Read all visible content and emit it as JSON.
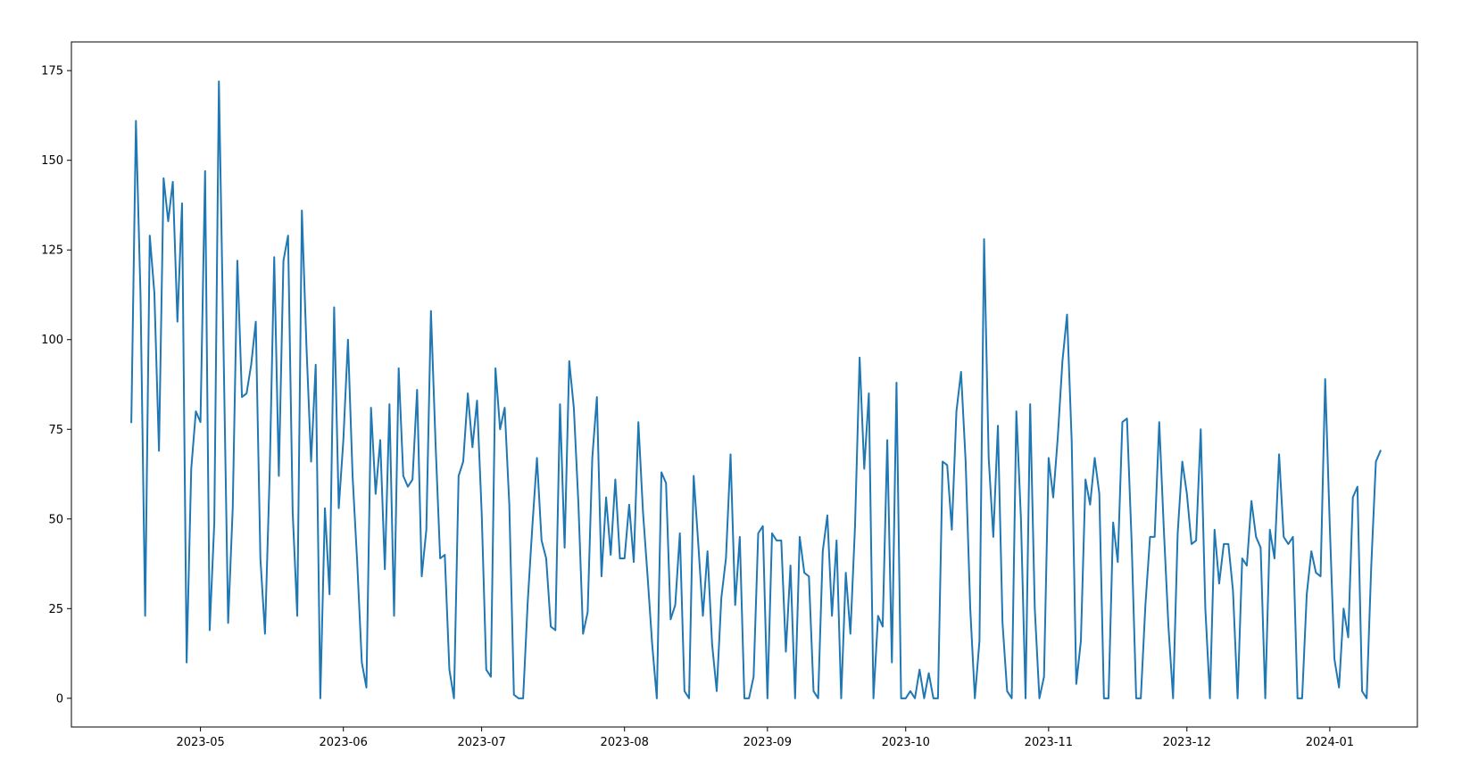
{
  "chart_data": {
    "type": "line",
    "title": "",
    "xlabel": "",
    "ylabel": "",
    "x_start_date": "2023-04-16",
    "ylim": [
      -8,
      183
    ],
    "xlim": [
      "2023-04-03",
      "2024-01-20"
    ],
    "grid": false,
    "x_ticks": [
      {
        "date": "2023-05-01",
        "label": "2023-05"
      },
      {
        "date": "2023-06-01",
        "label": "2023-06"
      },
      {
        "date": "2023-07-01",
        "label": "2023-07"
      },
      {
        "date": "2023-08-01",
        "label": "2023-08"
      },
      {
        "date": "2023-09-01",
        "label": "2023-09"
      },
      {
        "date": "2023-10-01",
        "label": "2023-10"
      },
      {
        "date": "2023-11-01",
        "label": "2023-11"
      },
      {
        "date": "2023-12-01",
        "label": "2023-12"
      },
      {
        "date": "2024-01-01",
        "label": "2024-01"
      }
    ],
    "y_ticks": [
      {
        "value": 0,
        "label": "0"
      },
      {
        "value": 25,
        "label": "25"
      },
      {
        "value": 50,
        "label": "50"
      },
      {
        "value": 75,
        "label": "75"
      },
      {
        "value": 100,
        "label": "100"
      },
      {
        "value": 125,
        "label": "125"
      },
      {
        "value": 150,
        "label": "150"
      },
      {
        "value": 175,
        "label": "175"
      }
    ],
    "series": [
      {
        "color": "#1f77b4",
        "values": [
          77,
          161,
          112,
          23,
          129,
          113,
          69,
          145,
          133,
          144,
          105,
          138,
          10,
          64,
          80,
          77,
          147,
          19,
          49,
          172,
          98,
          21,
          53,
          122,
          84,
          85,
          93,
          105,
          39,
          18,
          62,
          123,
          62,
          122,
          129,
          52,
          23,
          136,
          98,
          66,
          93,
          0,
          53,
          29,
          109,
          53,
          72,
          100,
          62,
          38,
          10,
          3,
          81,
          57,
          72,
          36,
          82,
          23,
          92,
          62,
          59,
          61,
          86,
          34,
          47,
          108,
          71,
          39,
          40,
          8,
          0,
          62,
          66,
          85,
          70,
          83,
          52,
          8,
          6,
          92,
          75,
          81,
          54,
          1,
          0,
          0,
          27,
          48,
          67,
          44,
          39,
          20,
          19,
          82,
          42,
          94,
          81,
          54,
          18,
          24,
          67,
          84,
          34,
          56,
          40,
          61,
          39,
          39,
          54,
          38,
          77,
          52,
          34,
          15,
          0,
          63,
          60,
          22,
          26,
          46,
          2,
          0,
          62,
          43,
          23,
          41,
          15,
          2,
          28,
          39,
          68,
          26,
          45,
          0,
          0,
          6,
          46,
          48,
          0,
          46,
          44,
          44,
          13,
          37,
          0,
          45,
          35,
          34,
          2,
          0,
          41,
          51,
          23,
          44,
          0,
          35,
          18,
          48,
          95,
          64,
          85,
          0,
          23,
          20,
          72,
          10,
          88,
          0,
          0,
          2,
          0,
          8,
          0,
          7,
          0,
          0,
          66,
          65,
          47,
          80,
          91,
          66,
          25,
          0,
          16,
          128,
          67,
          45,
          76,
          21,
          2,
          0,
          80,
          50,
          0,
          82,
          25,
          0,
          6,
          67,
          56,
          73,
          94,
          107,
          72,
          4,
          16,
          61,
          54,
          67,
          57,
          0,
          0,
          49,
          38,
          77,
          78,
          44,
          0,
          0,
          26,
          45,
          45,
          77,
          47,
          20,
          0,
          46,
          66,
          57,
          43,
          44,
          75,
          25,
          0,
          47,
          32,
          43,
          43,
          30,
          0,
          39,
          37,
          55,
          45,
          42,
          0,
          47,
          39,
          68,
          45,
          43,
          45,
          0,
          0,
          29,
          41,
          35,
          34,
          89,
          48,
          11,
          3,
          25,
          17,
          56,
          59,
          2,
          0,
          37,
          66,
          69
        ]
      }
    ]
  }
}
